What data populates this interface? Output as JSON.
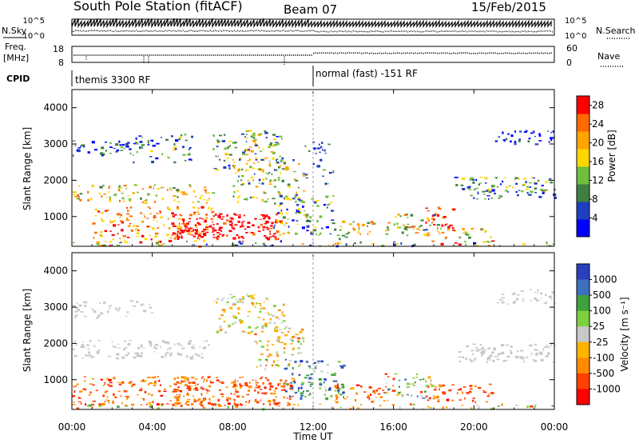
{
  "header": {
    "station": "South Pole Station (fitACF)",
    "beam": "Beam 07",
    "date": "15/Feb/2015"
  },
  "side_labels": {
    "nsky": "N.Sky",
    "nsearch": "N.Search",
    "freq_line1": "Freq.",
    "freq_line2": "[MHz]",
    "nave": "Nave",
    "cpid": "CPID"
  },
  "noise_ticks_left": [
    "10^5",
    "10^0"
  ],
  "noise_ticks_right": [
    "10^5",
    "10^0"
  ],
  "freq_ticks_left": [
    "18",
    "8"
  ],
  "freq_ticks_right": [
    "60",
    "0"
  ],
  "cpid_segments": [
    {
      "label": "themis 3300 RF",
      "start_hour": 0
    },
    {
      "label": "normal (fast) -151 RF",
      "start_hour": 12
    }
  ],
  "colors": {
    "power": [
      "#0000ff",
      "#1f3fbf",
      "#3f7f3f",
      "#6fbf3f",
      "#ffd700",
      "#ffa500",
      "#ff6a00",
      "#ff0000"
    ],
    "velocity": [
      "#2a3fbf",
      "#3f6fbf",
      "#3fa03f",
      "#7fd03f",
      "#c8c8c8",
      "#ffb400",
      "#ff8c00",
      "#ff4000",
      "#ff0000"
    ]
  },
  "chart_data": [
    {
      "type": "heatmap",
      "panel": "power",
      "ylabel": "Slant Range [km]",
      "xlabel": "Time UT",
      "xlim": [
        0,
        24
      ],
      "ylim": [
        180,
        4500
      ],
      "x_ticks": [
        "00:00",
        "04:00",
        "08:00",
        "12:00",
        "16:00",
        "20:00",
        "00:00"
      ],
      "y_ticks": [
        1000,
        2000,
        3000,
        4000
      ],
      "colorbar": {
        "label": "Power [dB]",
        "ticks": [
          4,
          8,
          12,
          16,
          20,
          24,
          28
        ],
        "range": [
          0,
          30
        ]
      }
    },
    {
      "type": "heatmap",
      "panel": "velocity",
      "ylabel": "Slant Range [km]",
      "xlabel": "Time UT",
      "xlim": [
        0,
        24
      ],
      "ylim": [
        180,
        4500
      ],
      "x_ticks": [
        "00:00",
        "04:00",
        "08:00",
        "12:00",
        "16:00",
        "20:00",
        "00:00"
      ],
      "y_ticks": [
        1000,
        2000,
        3000,
        4000
      ],
      "colorbar": {
        "label": "Velocity [m s⁻¹]",
        "ticks": [
          "1000",
          "500",
          "100",
          "25",
          "-25",
          "-100",
          "-500",
          "-1000"
        ]
      }
    }
  ],
  "axis": {
    "xlabel": "Time UT"
  }
}
